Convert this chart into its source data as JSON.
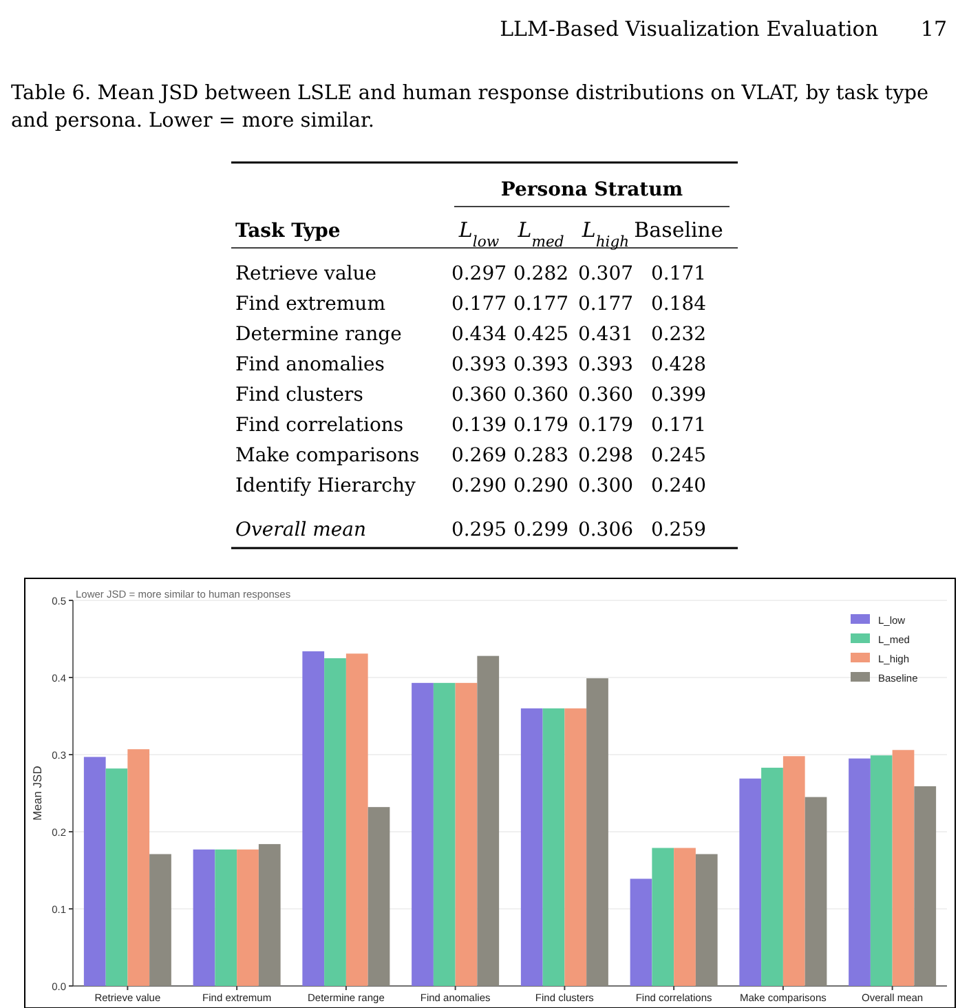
{
  "chart_data": [
    {
      "type": "heatmap",
      "title": "Table 6. Mean JSD between LSLE and human response distributions on VLAT, by task type and persona. Lower = more similar.",
      "annotations": [
        "LLM-Based Visualization Evaluation",
        "17"
      ],
      "xlabel": "Persona Stratum",
      "ylabel": "Task Type",
      "categories": [
        "L$_{low}$",
        "L$_{med}$",
        "L$_{high}$",
        "Baseline"
      ],
      "y_categories": [
        "Retrieve value",
        "Find extremum",
        "Determine range",
        "Find anomalies",
        "Find clusters",
        "Find correlations",
        "Make comparisons",
        "Identify Hierarchy",
        "Overall mean"
      ],
      "cells": [
        [
          0.297,
          0.282,
          0.307,
          0.171
        ],
        [
          0.177,
          0.177,
          0.177,
          0.184
        ],
        [
          0.434,
          0.425,
          0.431,
          0.232
        ],
        [
          0.393,
          0.393,
          0.393,
          0.428
        ],
        [
          0.36,
          0.36,
          0.36,
          0.399
        ],
        [
          0.139,
          0.179,
          0.179,
          0.171
        ],
        [
          0.269,
          0.283,
          0.298,
          0.245
        ],
        [
          0.29,
          0.29,
          0.3,
          0.24
        ],
        [
          0.295,
          0.299,
          0.306,
          0.259
        ]
      ],
      "data_labels": true,
      "cell_labels": [
        [
          "0.297",
          "0.282",
          "0.307",
          "0.171"
        ],
        [
          "0.177",
          "0.177",
          "0.177",
          "0.184"
        ],
        [
          "0.434",
          "0.425",
          "0.431",
          "0.232"
        ],
        [
          "0.393",
          "0.393",
          "0.393",
          "0.428"
        ],
        [
          "0.360",
          "0.360",
          "0.360",
          "0.399"
        ],
        [
          "0.139",
          "0.179",
          "0.179",
          "0.171"
        ],
        [
          "0.269",
          "0.283",
          "0.298",
          "0.245"
        ],
        [
          "0.290",
          "0.290",
          "0.300",
          "0.240"
        ],
        [
          "0.295",
          "0.299",
          "0.306",
          "0.259"
        ]
      ]
    },
    {
      "type": "bar",
      "annotations": [
        "Lower JSD = more similar to human responses"
      ],
      "ylabel": "Mean JSD",
      "categories": [
        "Retrieve value",
        "Find extremum",
        "Determine range",
        "Find anomalies",
        "Find clusters",
        "Find correlations",
        "Make comparisons",
        "Overall mean"
      ],
      "series": [
        {
          "name": "L_low",
          "color": "#8378e0",
          "values": [
            0.297,
            0.177,
            0.434,
            0.393,
            0.36,
            0.139,
            0.269,
            0.295
          ]
        },
        {
          "name": "L_med",
          "color": "#5ecb9e",
          "values": [
            0.282,
            0.177,
            0.425,
            0.393,
            0.36,
            0.179,
            0.283,
            0.299
          ]
        },
        {
          "name": "L_high",
          "color": "#f29a7a",
          "values": [
            0.307,
            0.177,
            0.431,
            0.393,
            0.36,
            0.179,
            0.298,
            0.306
          ]
        },
        {
          "name": "Baseline",
          "color": "#8c8a80",
          "values": [
            0.171,
            0.184,
            0.232,
            0.428,
            0.399,
            0.171,
            0.245,
            0.259
          ]
        }
      ],
      "ylim": [
        0,
        0.5
      ],
      "yticks": [
        {
          "value": 0,
          "label": "0.0"
        },
        0.1,
        0.2,
        0.3,
        0.4,
        0.5
      ],
      "grid": "y",
      "legend": "top right"
    }
  ]
}
